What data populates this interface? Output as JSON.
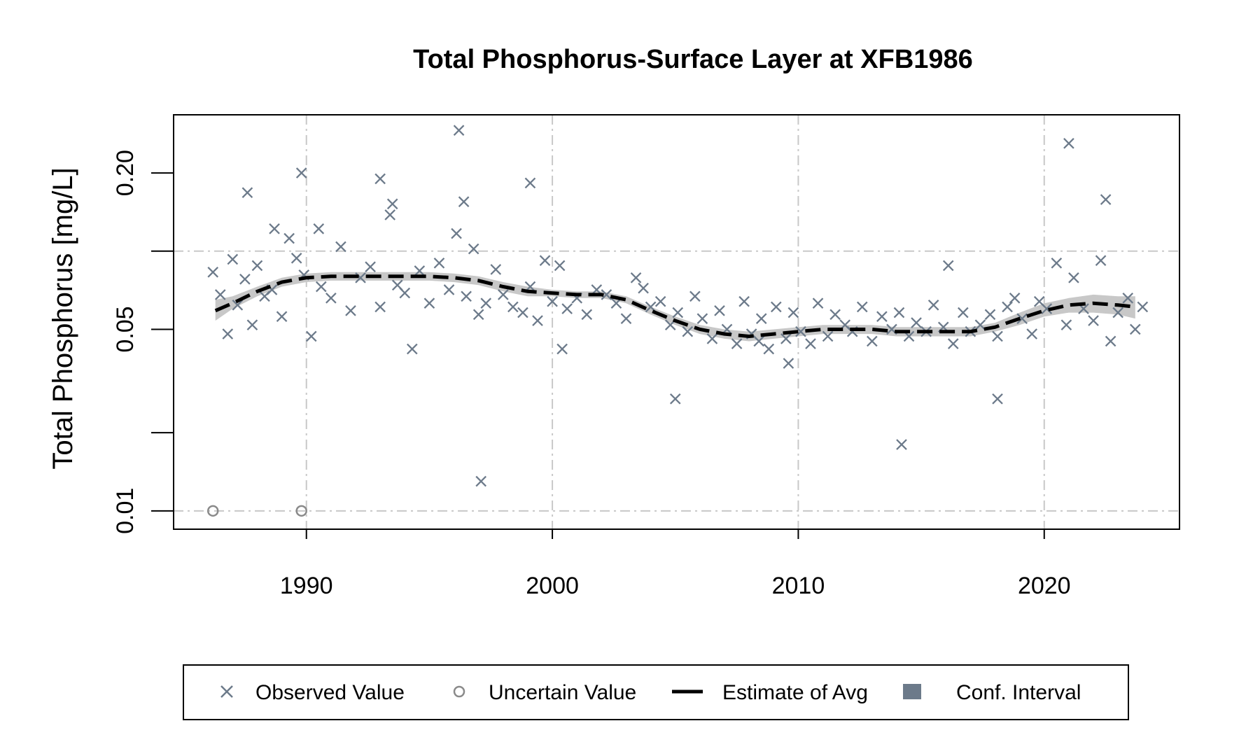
{
  "chart_data": {
    "type": "scatter",
    "title": "Total Phosphorus-Surface Layer at XFB1986",
    "xlabel": "",
    "ylabel": "Total Phosphorus [mg/L]",
    "y_scale": "log",
    "xlim": [
      1984.6,
      2025.5
    ],
    "ylim": [
      0.0085,
      0.335
    ],
    "x_ticks": [
      1990,
      2000,
      2010,
      2020
    ],
    "x_tick_labels": [
      "1990",
      "2000",
      "2010",
      "2020"
    ],
    "y_ticks": [
      0.01,
      0.02,
      0.05,
      0.1,
      0.2
    ],
    "y_tick_labels": [
      "0.01",
      "",
      "0.05",
      "",
      "0.20"
    ],
    "grid": true,
    "colors": {
      "observed": "#6c7a8a",
      "uncertain": "#8a8a8a",
      "estimate": "#000000",
      "conf_interval": "#c8c8c8",
      "conf_legend": "#6c7a8a",
      "grid": "#c8c8c8"
    },
    "legend": {
      "position": "bottom",
      "entries": [
        "Observed Value",
        "Uncertain Value",
        "Estimate of Avg",
        "Conf. Interval"
      ]
    },
    "series": [
      {
        "name": "Observed Value",
        "marker": "x",
        "x": [
          1986.2,
          1986.5,
          1986.8,
          1987.0,
          1987.2,
          1987.5,
          1987.8,
          1988.0,
          1988.3,
          1988.6,
          1989.0,
          1989.3,
          1989.6,
          1989.9,
          1990.2,
          1990.6,
          1991.0,
          1991.4,
          1991.8,
          1992.2,
          1992.6,
          1993.0,
          1993.4,
          1993.7,
          1994.0,
          1994.3,
          1994.6,
          1995.0,
          1995.4,
          1995.8,
          1996.1,
          1996.5,
          1996.8,
          1997.0,
          1997.3,
          1997.7,
          1998.0,
          1998.4,
          1998.8,
          1999.1,
          1999.4,
          1999.7,
          2000.0,
          2000.3,
          2000.6,
          2001.0,
          2001.4,
          2001.8,
          2002.2,
          2002.6,
          2003.0,
          2003.4,
          2003.7,
          2004.0,
          2004.4,
          2004.8,
          2005.1,
          2005.5,
          2005.8,
          2006.1,
          2006.5,
          2006.8,
          2007.1,
          2007.5,
          2007.8,
          2008.1,
          2008.5,
          2008.8,
          2009.1,
          2009.5,
          2009.8,
          2010.1,
          2010.5,
          2010.8,
          2011.2,
          2011.5,
          2011.9,
          2012.2,
          2012.6,
          2013.0,
          2013.4,
          2013.8,
          2014.1,
          2014.5,
          2014.8,
          2015.2,
          2015.5,
          2015.9,
          2016.3,
          2016.7,
          2017.0,
          2017.4,
          2017.8,
          2018.1,
          2018.5,
          2018.8,
          2019.1,
          2019.5,
          2019.8,
          2020.1,
          2020.5,
          2020.9,
          2021.2,
          2021.6,
          2022.0,
          2022.3,
          2022.7,
          2023.0,
          2023.4,
          2023.7,
          2024.0,
          1987.6,
          1989.8,
          1993.0,
          1996.4,
          1999.1,
          2008.4,
          2014.2,
          2018.1,
          2022.5,
          2005.0,
          1997.1,
          1988.7,
          1993.5,
          2021.0,
          1996.2,
          1990.5,
          2000.4,
          2009.6,
          2016.1
        ],
        "y": [
          0.083,
          0.068,
          0.048,
          0.093,
          0.062,
          0.078,
          0.052,
          0.088,
          0.067,
          0.071,
          0.056,
          0.112,
          0.094,
          0.081,
          0.047,
          0.073,
          0.066,
          0.104,
          0.059,
          0.079,
          0.087,
          0.061,
          0.138,
          0.074,
          0.069,
          0.042,
          0.084,
          0.063,
          0.09,
          0.071,
          0.117,
          0.067,
          0.102,
          0.057,
          0.063,
          0.085,
          0.068,
          0.061,
          0.058,
          0.073,
          0.054,
          0.092,
          0.064,
          0.088,
          0.06,
          0.066,
          0.057,
          0.071,
          0.068,
          0.063,
          0.055,
          0.079,
          0.072,
          0.061,
          0.064,
          0.052,
          0.058,
          0.049,
          0.067,
          0.055,
          0.046,
          0.059,
          0.05,
          0.044,
          0.064,
          0.048,
          0.055,
          0.042,
          0.061,
          0.046,
          0.058,
          0.049,
          0.044,
          0.063,
          0.047,
          0.057,
          0.052,
          0.049,
          0.061,
          0.045,
          0.056,
          0.05,
          0.058,
          0.047,
          0.053,
          0.049,
          0.062,
          0.051,
          0.044,
          0.058,
          0.049,
          0.052,
          0.057,
          0.047,
          0.061,
          0.066,
          0.055,
          0.048,
          0.064,
          0.06,
          0.09,
          0.052,
          0.079,
          0.06,
          0.054,
          0.092,
          0.045,
          0.058,
          0.066,
          0.05,
          0.061,
          0.168,
          0.2,
          0.19,
          0.155,
          0.183,
          0.045,
          0.018,
          0.027,
          0.158,
          0.027,
          0.013,
          0.122,
          0.152,
          0.26,
          0.292,
          0.122,
          0.042,
          0.037,
          0.088
        ],
        "uncertain": [
          false
        ]
      },
      {
        "name": "Uncertain Value",
        "marker": "o",
        "x": [
          1986.2,
          1989.8
        ],
        "y": [
          0.01,
          0.01
        ]
      },
      {
        "name": "Estimate of Avg",
        "line": "dashed",
        "x": [
          1986.3,
          1987.0,
          1988.0,
          1989.0,
          1990.0,
          1991.0,
          1992.0,
          1993.0,
          1994.0,
          1995.0,
          1996.0,
          1997.0,
          1998.0,
          1999.0,
          2000.0,
          2001.0,
          2002.0,
          2003.0,
          2004.0,
          2005.0,
          2006.0,
          2007.0,
          2008.0,
          2009.0,
          2010.0,
          2011.0,
          2012.0,
          2013.0,
          2014.0,
          2015.0,
          2016.0,
          2017.0,
          2018.0,
          2019.0,
          2020.0,
          2021.0,
          2022.0,
          2023.0,
          2023.7
        ],
        "y": [
          0.059,
          0.063,
          0.07,
          0.076,
          0.079,
          0.08,
          0.08,
          0.08,
          0.08,
          0.08,
          0.079,
          0.077,
          0.073,
          0.07,
          0.069,
          0.068,
          0.068,
          0.065,
          0.059,
          0.054,
          0.05,
          0.048,
          0.047,
          0.048,
          0.049,
          0.05,
          0.05,
          0.05,
          0.049,
          0.049,
          0.049,
          0.049,
          0.051,
          0.055,
          0.059,
          0.062,
          0.063,
          0.062,
          0.061
        ]
      },
      {
        "name": "Conf. Interval",
        "lower": [
          0.054,
          0.06,
          0.067,
          0.073,
          0.076,
          0.077,
          0.077,
          0.077,
          0.077,
          0.077,
          0.076,
          0.074,
          0.07,
          0.067,
          0.067,
          0.066,
          0.066,
          0.063,
          0.057,
          0.052,
          0.048,
          0.046,
          0.045,
          0.046,
          0.047,
          0.048,
          0.048,
          0.048,
          0.047,
          0.047,
          0.047,
          0.047,
          0.049,
          0.052,
          0.056,
          0.058,
          0.058,
          0.057,
          0.055
        ],
        "upper": [
          0.065,
          0.067,
          0.073,
          0.079,
          0.082,
          0.083,
          0.083,
          0.083,
          0.083,
          0.083,
          0.082,
          0.08,
          0.076,
          0.073,
          0.071,
          0.07,
          0.07,
          0.067,
          0.061,
          0.056,
          0.052,
          0.05,
          0.049,
          0.05,
          0.051,
          0.052,
          0.052,
          0.052,
          0.051,
          0.051,
          0.051,
          0.051,
          0.053,
          0.058,
          0.063,
          0.066,
          0.068,
          0.067,
          0.067
        ]
      }
    ]
  }
}
